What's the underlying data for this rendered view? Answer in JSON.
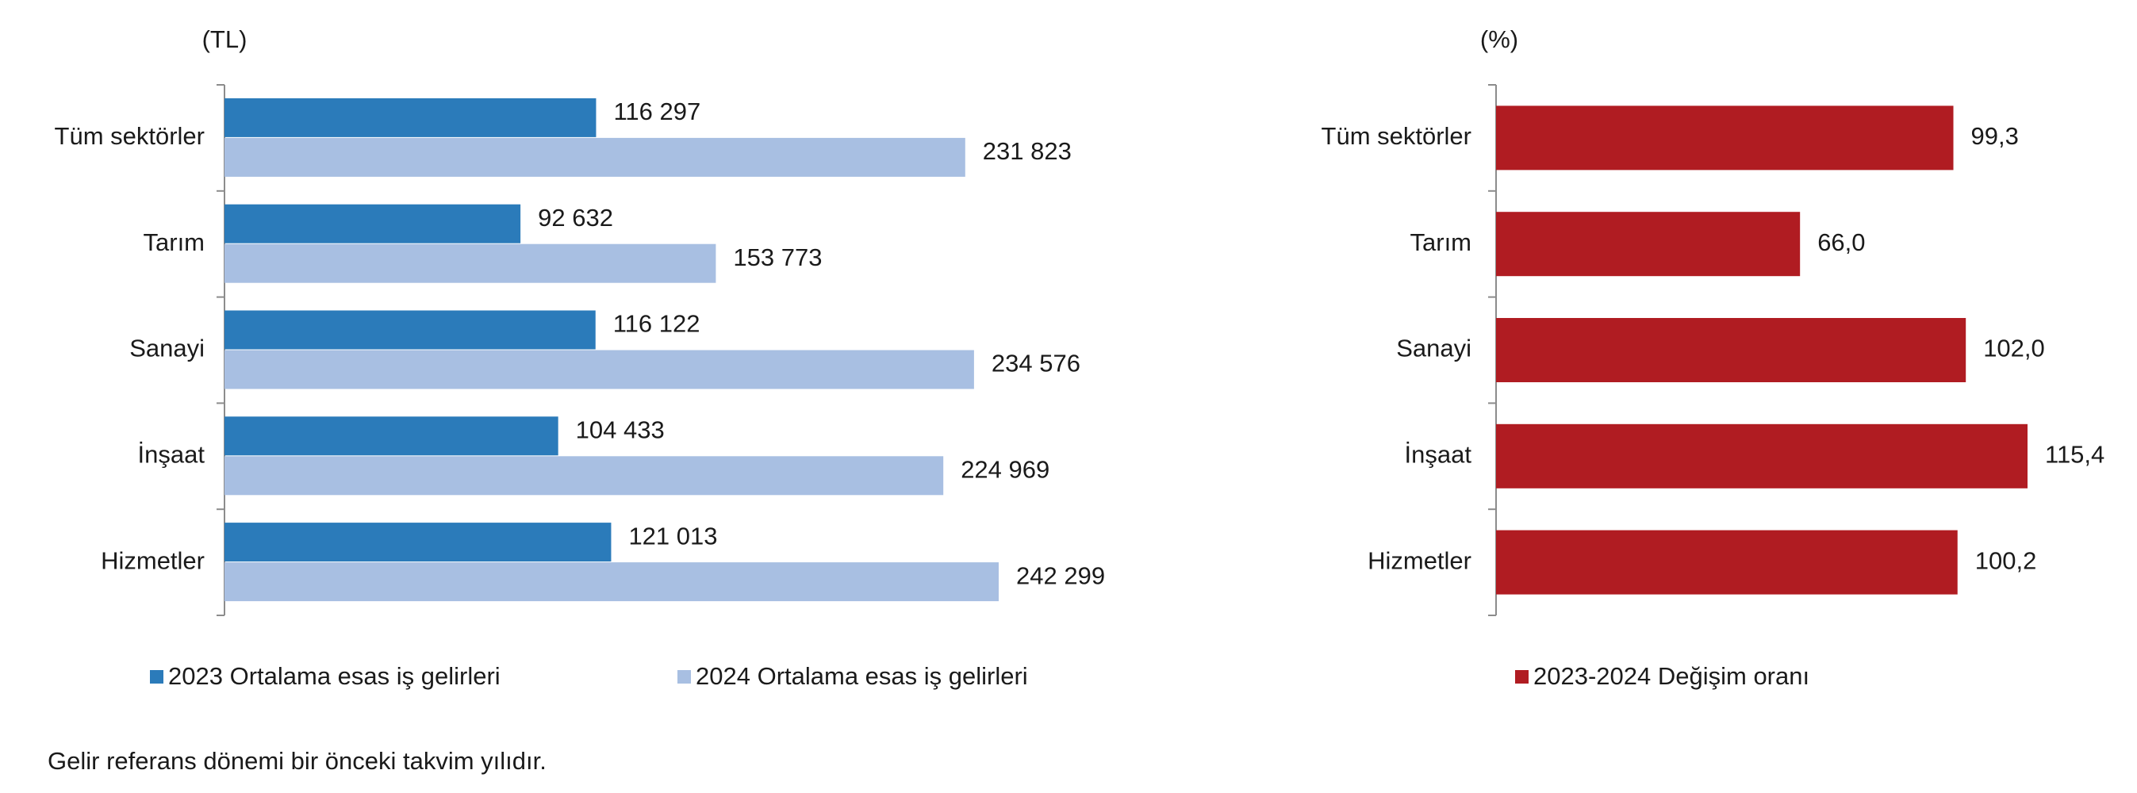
{
  "chart_data": [
    {
      "type": "bar",
      "orientation": "horizontal",
      "unit": "(TL)",
      "categories": [
        "Tüm sektörler",
        "Tarım",
        "Sanayi",
        "İnşaat",
        "Hizmetler"
      ],
      "series": [
        {
          "name": "2023 Ortalama esas iş gelirleri",
          "color": "#2b7bba",
          "values": [
            116297,
            92632,
            116122,
            104433,
            121013
          ],
          "value_labels": [
            "116 297",
            "92 632",
            "116 122",
            "104 433",
            "121 013"
          ]
        },
        {
          "name": "2024 Ortalama esas iş gelirleri",
          "color": "#a8bfe2",
          "values": [
            231823,
            153773,
            234576,
            224969,
            242299
          ],
          "value_labels": [
            "231 823",
            "153 773",
            "234 576",
            "224 969",
            "242 299"
          ]
        }
      ]
    },
    {
      "type": "bar",
      "orientation": "horizontal",
      "unit": "(%)",
      "categories": [
        "Tüm sektörler",
        "Tarım",
        "Sanayi",
        "İnşaat",
        "Hizmetler"
      ],
      "series": [
        {
          "name": "2023-2024 Değişim oranı",
          "color": "#b01c22",
          "values": [
            99.3,
            66.0,
            102.0,
            115.4,
            100.2
          ],
          "value_labels": [
            "99,3",
            "66,0",
            "102,0",
            "115,4",
            "100,2"
          ]
        }
      ]
    }
  ],
  "footnote": "Gelir referans dönemi bir önceki takvim yılıdır."
}
